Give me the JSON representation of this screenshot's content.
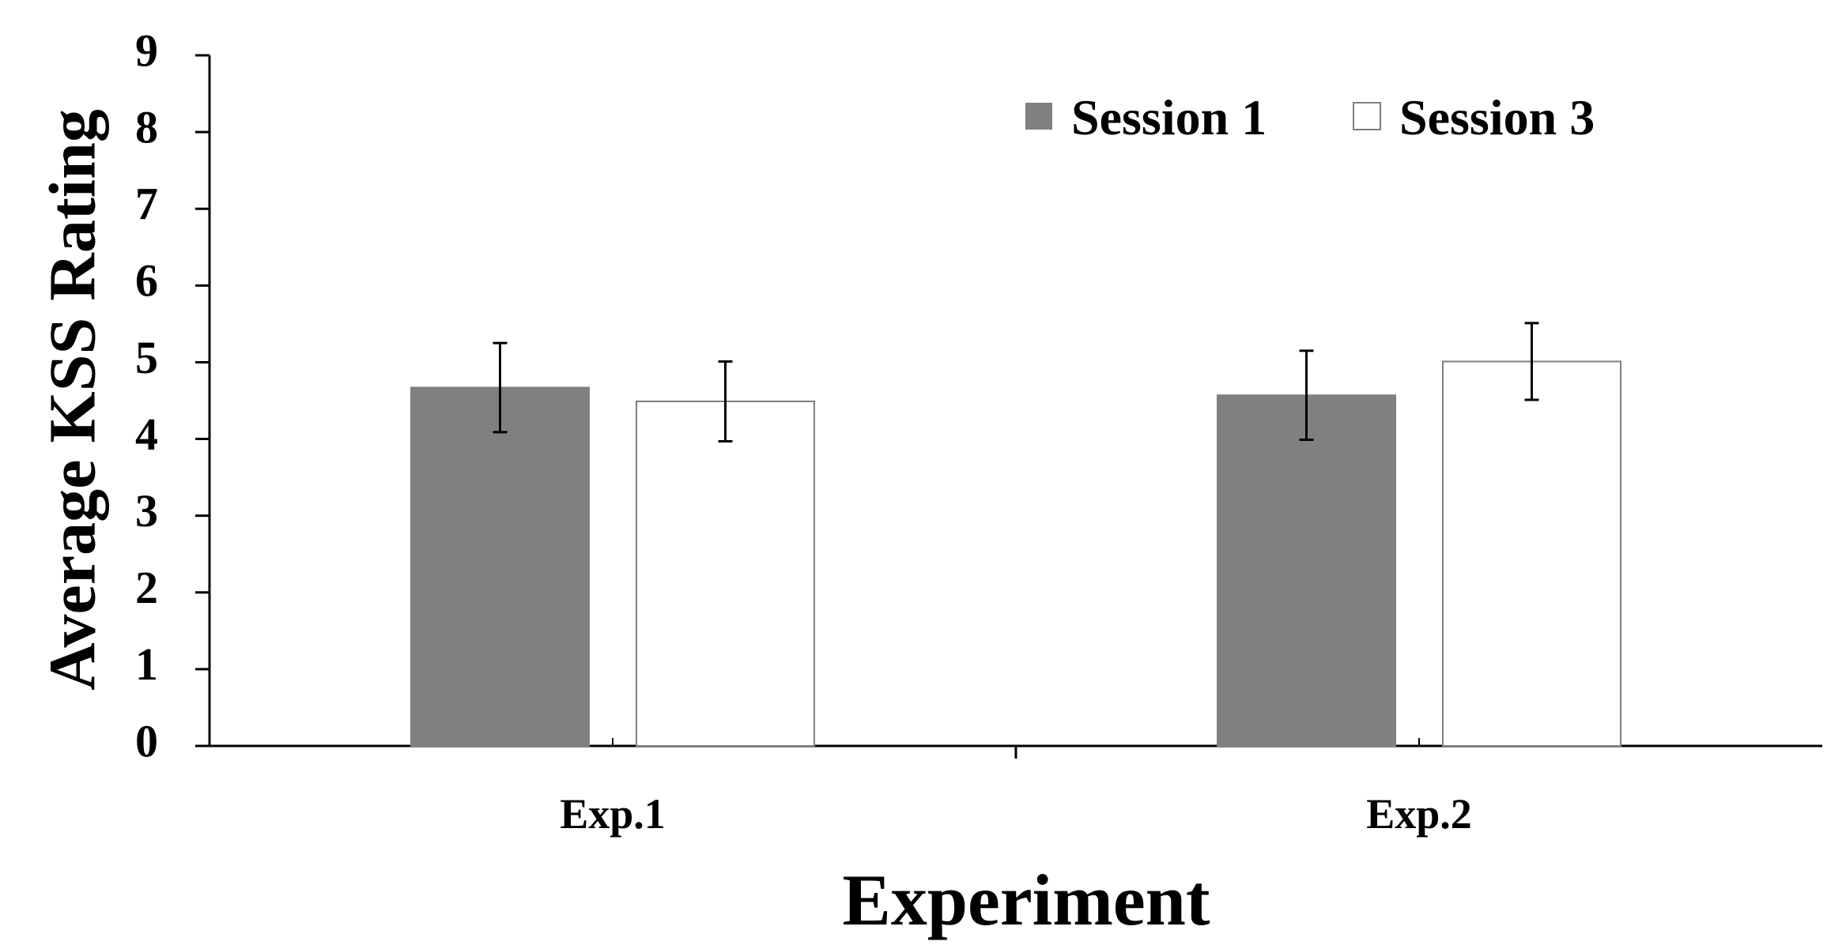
{
  "chart_data": {
    "type": "bar",
    "title": "",
    "xlabel": "Experiment",
    "ylabel": "Average KSS Rating",
    "categories": [
      "Exp.1",
      "Exp.2"
    ],
    "series": [
      {
        "name": "Session 1",
        "values": [
          4.67,
          4.57
        ],
        "errors": [
          0.58,
          0.58
        ],
        "color": "#808080",
        "stroke": "#808080"
      },
      {
        "name": "Session 3",
        "values": [
          4.49,
          5.01
        ],
        "errors": [
          0.52,
          0.5
        ],
        "color": "#ffffff",
        "stroke": "#7f7f7f"
      }
    ],
    "ylim": [
      0,
      9
    ],
    "yticks": [
      "0",
      "1",
      "2",
      "3",
      "4",
      "5",
      "6",
      "7",
      "8",
      "9"
    ],
    "grid": false,
    "legend_position": "top-right"
  }
}
